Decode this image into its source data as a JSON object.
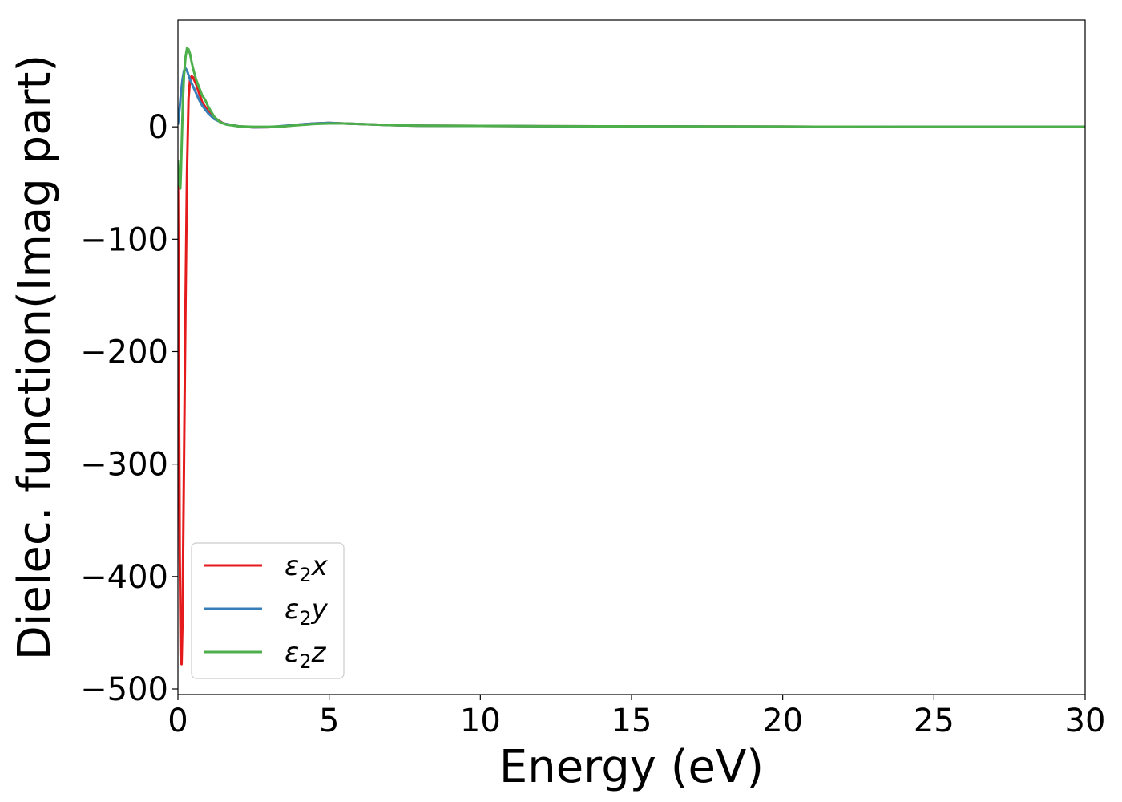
{
  "chart_data": {
    "type": "line",
    "title": "",
    "xlabel": "Energy (eV)",
    "ylabel": "Dielec. function(Imag part)",
    "xlim": [
      0,
      30
    ],
    "ylim": [
      -505,
      95
    ],
    "xticks": [
      0,
      5,
      10,
      15,
      20,
      25,
      30
    ],
    "yticks": [
      -500,
      -400,
      -300,
      -200,
      -100,
      0
    ],
    "xtick_labels": [
      "0",
      "5",
      "10",
      "15",
      "20",
      "25",
      "30"
    ],
    "ytick_labels": [
      "−500",
      "−400",
      "−300",
      "−200",
      "−100",
      "0"
    ],
    "grid": false,
    "legend_position": "lower-left",
    "series": [
      {
        "name": "ε₂x",
        "legend_symbol": "ε",
        "legend_sub": "2",
        "legend_var": "x",
        "color": "#e41a1c",
        "x": [
          0.0,
          0.03,
          0.06,
          0.09,
          0.12,
          0.15,
          0.2,
          0.25,
          0.3,
          0.35,
          0.4,
          0.45,
          0.5,
          0.6,
          0.7,
          0.8,
          1.0,
          1.2,
          1.5,
          2.0,
          2.5,
          3.0,
          3.5,
          4.0,
          4.5,
          5.0,
          5.5,
          6.0,
          7.0,
          8.0,
          10.0,
          12.0,
          14.0,
          16.0,
          18.0,
          20.0,
          22.0,
          25.0,
          28.0,
          30.0
        ],
        "y": [
          -30,
          -200,
          -380,
          -470,
          -478,
          -440,
          -300,
          -160,
          -40,
          25,
          42,
          45,
          44,
          38,
          30,
          22,
          14,
          8,
          3,
          0.5,
          -0.5,
          -0.3,
          0.5,
          2,
          3,
          3.5,
          3,
          2.5,
          1.5,
          1,
          0.8,
          0.6,
          0.5,
          0.4,
          0.3,
          0.2,
          0.1,
          0.05,
          0.02,
          0.01
        ]
      },
      {
        "name": "ε₂y",
        "legend_symbol": "ε",
        "legend_sub": "2",
        "legend_var": "y",
        "color": "#377eb8",
        "x": [
          0.0,
          0.05,
          0.1,
          0.15,
          0.2,
          0.25,
          0.3,
          0.35,
          0.4,
          0.5,
          0.6,
          0.7,
          0.8,
          1.0,
          1.2,
          1.5,
          2.0,
          2.5,
          3.0,
          3.5,
          4.0,
          4.5,
          5.0,
          5.5,
          6.0,
          7.0,
          8.0,
          10.0,
          12.0,
          14.0,
          16.0,
          18.0,
          20.0,
          22.0,
          25.0,
          28.0,
          30.0
        ],
        "y": [
          2,
          15,
          30,
          42,
          50,
          52,
          50,
          46,
          42,
          36,
          30,
          24,
          19,
          12,
          7,
          3,
          0.5,
          -0.5,
          -0.3,
          0.8,
          2,
          3,
          3.5,
          3,
          2.5,
          1.5,
          1,
          0.8,
          0.6,
          0.5,
          0.4,
          0.3,
          0.2,
          0.1,
          0.05,
          0.02,
          0.01
        ]
      },
      {
        "name": "ε₂z",
        "legend_symbol": "ε",
        "legend_sub": "2",
        "legend_var": "z",
        "color": "#4daf4a",
        "x": [
          0.0,
          0.04,
          0.08,
          0.1,
          0.13,
          0.16,
          0.2,
          0.25,
          0.3,
          0.35,
          0.4,
          0.45,
          0.5,
          0.6,
          0.7,
          0.8,
          0.9,
          1.0,
          1.2,
          1.4,
          1.6,
          2.0,
          2.5,
          3.0,
          3.5,
          4.0,
          4.5,
          5.0,
          5.5,
          6.0,
          7.0,
          8.0,
          10.0,
          12.0,
          14.0,
          16.0,
          18.0,
          20.0,
          22.0,
          25.0,
          28.0,
          30.0
        ],
        "y": [
          -30,
          -50,
          -55,
          -40,
          -10,
          20,
          45,
          62,
          70,
          69,
          65,
          58,
          52,
          42,
          35,
          28,
          24,
          18,
          9,
          4,
          2,
          0.5,
          0,
          0,
          0.5,
          1.5,
          2.5,
          3,
          3,
          2.5,
          1.5,
          1,
          0.8,
          0.6,
          0.5,
          0.4,
          0.3,
          0.2,
          0.1,
          0.05,
          0.02,
          0.01
        ]
      }
    ]
  }
}
